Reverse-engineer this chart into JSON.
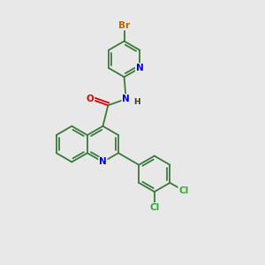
{
  "bg_color": "#e8e8e8",
  "bond_color": "#3a7a3a",
  "N_color": "#0000ee",
  "O_color": "#dd0000",
  "Br_color": "#bb6600",
  "Cl_color": "#33aa33",
  "lw": 1.3,
  "dbo": 0.09,
  "r_hex": 0.62,
  "xlim": [
    0,
    9
  ],
  "ylim": [
    0,
    9
  ],
  "figsize": [
    3.0,
    3.0
  ],
  "dpi": 100
}
